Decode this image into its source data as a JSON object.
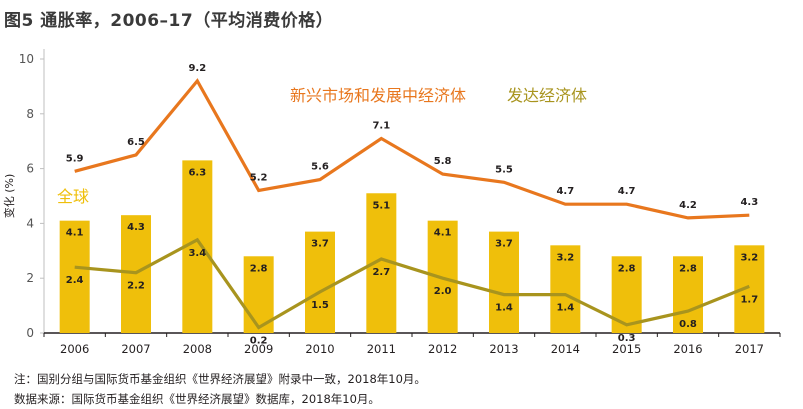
{
  "title": "图5 通胀率，2006–17（平均消费价格）",
  "notes": {
    "note": "注：国别分组与国际货币基金组织《世界经济展望》附录中一致，2018年10月。",
    "source": "数据来源：国际货币基金组织《世界经济展望》数据库，2018年10月。"
  },
  "colors": {
    "emerging": "#e8771e",
    "advanced": "#a8941e",
    "world_bar": "#efbf0b",
    "world_label": "#efbf0b",
    "axis": "#231f20",
    "grid": "#bfbfbf"
  },
  "chart_data": {
    "type": "bar",
    "ylabel": "变化 (%)",
    "ylim": [
      0,
      10
    ],
    "yticks": [
      0,
      2,
      4,
      6,
      8,
      10
    ],
    "grid": false,
    "categories": [
      "2006",
      "2007",
      "2008",
      "2009",
      "2010",
      "2011",
      "2012",
      "2013",
      "2014",
      "2015",
      "2016",
      "2017"
    ],
    "series": [
      {
        "name": "全球",
        "kind": "bar",
        "values": [
          4.1,
          4.3,
          6.3,
          2.8,
          3.7,
          5.1,
          4.1,
          3.7,
          3.2,
          2.8,
          2.8,
          3.2
        ]
      },
      {
        "name": "新兴市场和发展中经济体",
        "kind": "line",
        "values": [
          5.9,
          6.5,
          9.2,
          5.2,
          5.6,
          7.1,
          5.8,
          5.5,
          4.7,
          4.7,
          4.2,
          4.3
        ]
      },
      {
        "name": "发达经济体",
        "kind": "line",
        "values": [
          2.4,
          2.2,
          3.4,
          0.2,
          1.5,
          2.7,
          2.0,
          1.4,
          1.4,
          0.3,
          0.8,
          1.7
        ]
      }
    ]
  }
}
